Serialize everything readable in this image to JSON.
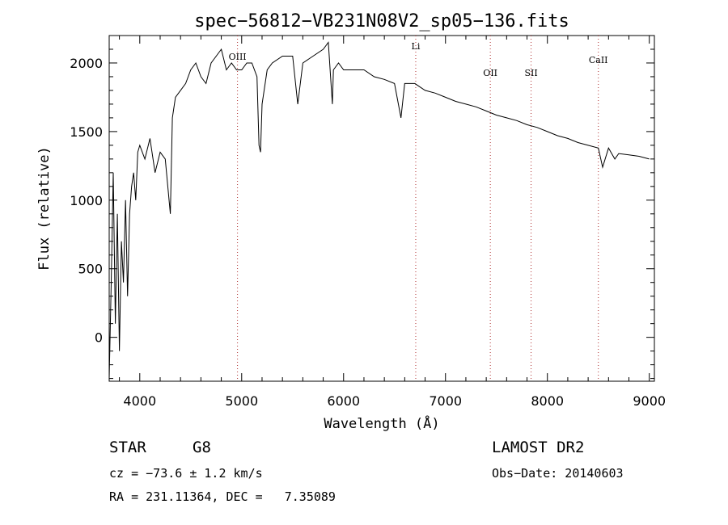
{
  "chart_data": {
    "type": "line",
    "title": "spec−56812−VB231N08V2_sp05−136.fits",
    "xlabel": "Wavelength (Å)",
    "ylabel": "Flux (relative)",
    "xlim": [
      3700,
      9050
    ],
    "ylim": [
      -320,
      2200
    ],
    "x_ticks": [
      4000,
      5000,
      6000,
      7000,
      8000,
      9000
    ],
    "y_ticks": [
      0,
      500,
      1000,
      1500,
      2000
    ],
    "x_tick_labels": [
      "4000",
      "5000",
      "6000",
      "7000",
      "8000",
      "9000"
    ],
    "y_tick_labels": [
      "0",
      "500",
      "1000",
      "1500",
      "2000"
    ],
    "series": [
      {
        "x": [
          3700,
          3720,
          3740,
          3760,
          3780,
          3800,
          3820,
          3840,
          3860,
          3880,
          3900,
          3920,
          3940,
          3960,
          3980,
          4000,
          4050,
          4100,
          4150,
          4200,
          4250,
          4300,
          4320,
          4350,
          4400,
          4450,
          4500,
          4550,
          4600,
          4650,
          4700,
          4750,
          4800,
          4850,
          4900,
          4950,
          5000,
          5050,
          5100,
          5150,
          5170,
          5185,
          5200,
          5250,
          5300,
          5400,
          5500,
          5550,
          5600,
          5700,
          5800,
          5850,
          5890,
          5900,
          5950,
          6000,
          6100,
          6200,
          6300,
          6400,
          6500,
          6563,
          6600,
          6700,
          6800,
          6900,
          7000,
          7100,
          7200,
          7300,
          7400,
          7500,
          7600,
          7700,
          7800,
          7900,
          8000,
          8100,
          8200,
          8300,
          8400,
          8500,
          8542,
          8600,
          8662,
          8700,
          8800,
          8900,
          9000
        ],
        "values": [
          -300,
          400,
          1200,
          100,
          900,
          -100,
          700,
          400,
          1000,
          300,
          900,
          1100,
          1200,
          1000,
          1350,
          1400,
          1300,
          1450,
          1200,
          1350,
          1300,
          900,
          1600,
          1750,
          1800,
          1850,
          1950,
          2000,
          1900,
          1850,
          2000,
          2050,
          2100,
          1950,
          2000,
          1950,
          1950,
          2000,
          2000,
          1900,
          1400,
          1350,
          1700,
          1950,
          2000,
          2050,
          2050,
          1700,
          2000,
          2050,
          2100,
          2150,
          1700,
          1950,
          2000,
          1950,
          1950,
          1950,
          1900,
          1880,
          1850,
          1600,
          1850,
          1850,
          1800,
          1780,
          1750,
          1720,
          1700,
          1680,
          1650,
          1620,
          1600,
          1580,
          1550,
          1530,
          1500,
          1470,
          1450,
          1420,
          1400,
          1380,
          1240,
          1380,
          1300,
          1340,
          1330,
          1320,
          1300
        ]
      }
    ],
    "reference_lines": [
      {
        "x": 4959,
        "label": "OIII"
      },
      {
        "x": 6708,
        "label": "Li"
      },
      {
        "x": 7440,
        "label": "OII"
      },
      {
        "x": 7840,
        "label": "SII"
      },
      {
        "x": 8500,
        "label": "CaII"
      }
    ],
    "grid": false,
    "legend": "none"
  },
  "info": {
    "object_type": "STAR",
    "subclass": "G8",
    "survey": "LAMOST DR2",
    "cz": "cz = −73.6 ± 1.2 km/s",
    "obs_date": "Obs−Date: 20140603",
    "ra_dec": "RA = 231.11364, DEC =   7.35089"
  }
}
